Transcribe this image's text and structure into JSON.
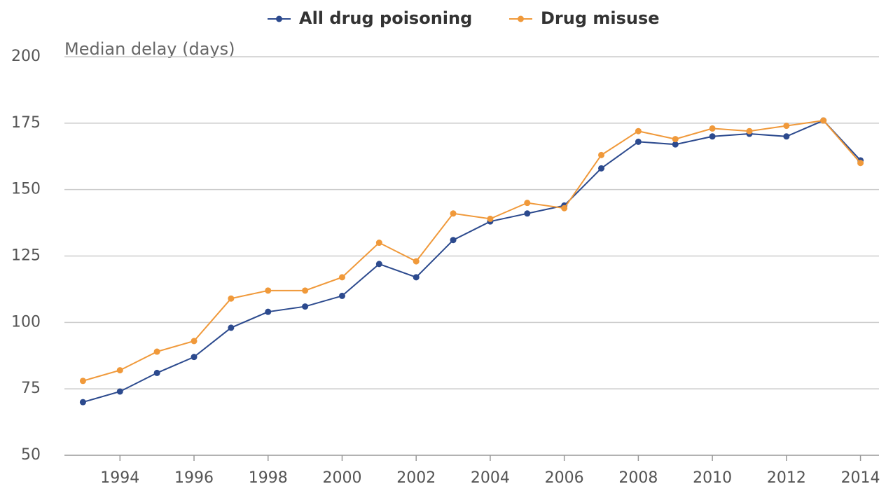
{
  "chart_data": {
    "type": "line",
    "y_label": "Median delay (days)",
    "x": [
      1993,
      1994,
      1995,
      1996,
      1997,
      1998,
      1999,
      2000,
      2001,
      2002,
      2003,
      2004,
      2005,
      2006,
      2007,
      2008,
      2009,
      2010,
      2011,
      2012,
      2013,
      2014
    ],
    "series": [
      {
        "name": "All drug poisoning",
        "color": "#2c4a8e",
        "values": [
          70,
          74,
          81,
          87,
          98,
          104,
          106,
          110,
          122,
          117,
          131,
          138,
          141,
          144,
          158,
          168,
          167,
          170,
          171,
          170,
          176,
          161
        ]
      },
      {
        "name": "Drug misuse",
        "color": "#f0993a",
        "values": [
          78,
          82,
          89,
          93,
          109,
          112,
          112,
          117,
          130,
          123,
          141,
          139,
          145,
          143,
          163,
          172,
          169,
          173,
          172,
          174,
          176,
          160
        ]
      }
    ],
    "xlim": [
      1992.5,
      2014.5
    ],
    "xticks": [
      1994,
      1996,
      1998,
      2000,
      2002,
      2004,
      2006,
      2008,
      2010,
      2012,
      2014
    ],
    "ylim": [
      50,
      200
    ],
    "yticks": [
      50,
      75,
      100,
      125,
      150,
      175,
      200
    ],
    "grid": true,
    "legend": "top"
  }
}
